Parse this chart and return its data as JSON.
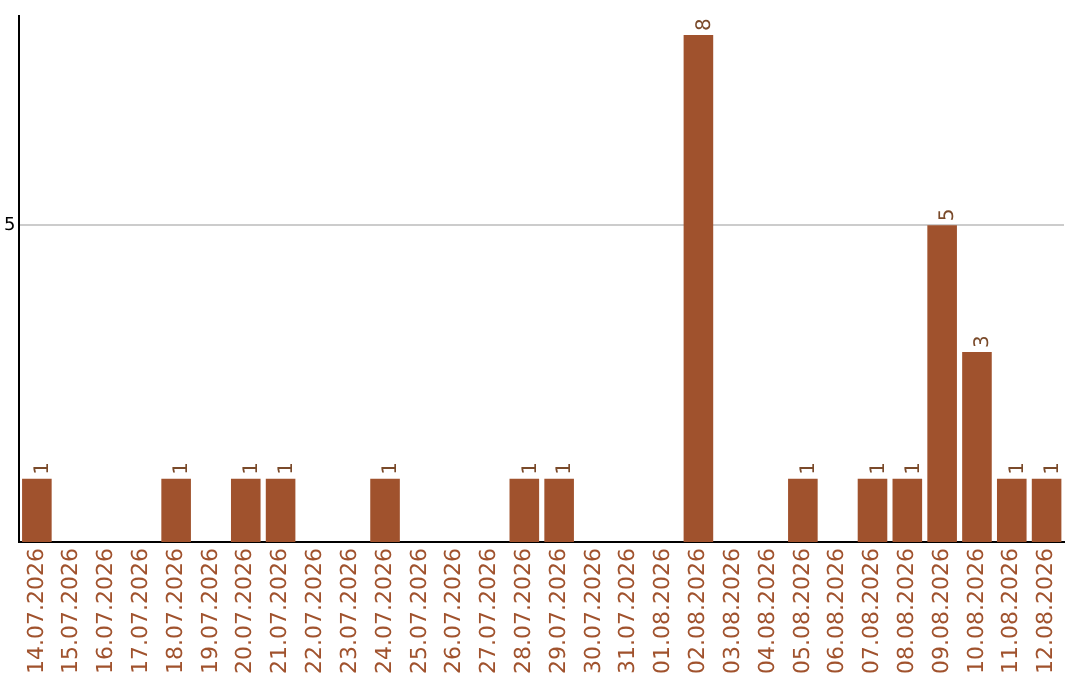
{
  "chart_data": {
    "type": "bar",
    "categories": [
      "14.07.2026",
      "15.07.2026",
      "16.07.2026",
      "17.07.2026",
      "18.07.2026",
      "19.07.2026",
      "20.07.2026",
      "21.07.2026",
      "22.07.2026",
      "23.07.2026",
      "24.07.2026",
      "25.07.2026",
      "26.07.2026",
      "27.07.2026",
      "28.07.2026",
      "29.07.2026",
      "30.07.2026",
      "31.07.2026",
      "01.08.2026",
      "02.08.2026",
      "03.08.2026",
      "04.08.2026",
      "05.08.2026",
      "06.08.2026",
      "07.08.2026",
      "08.08.2026",
      "09.08.2026",
      "10.08.2026",
      "11.08.2026",
      "12.08.2026"
    ],
    "values": [
      1,
      null,
      null,
      null,
      1,
      null,
      1,
      1,
      null,
      null,
      1,
      null,
      null,
      null,
      1,
      1,
      null,
      null,
      null,
      8,
      null,
      null,
      1,
      null,
      1,
      1,
      5,
      3,
      1,
      1
    ],
    "color": "#a0522d",
    "ylim": [
      0,
      8.3
    ],
    "yticks": [
      5
    ],
    "grid": "y",
    "data_labels": true
  }
}
